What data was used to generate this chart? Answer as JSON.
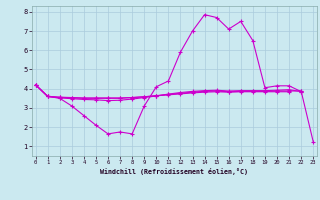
{
  "xlabel": "Windchill (Refroidissement éolien,°C)",
  "background_color": "#cbe9f0",
  "grid_color": "#aaccdd",
  "line_color": "#cc00cc",
  "x_hours": [
    0,
    1,
    2,
    3,
    4,
    5,
    6,
    7,
    8,
    9,
    10,
    11,
    12,
    13,
    14,
    15,
    16,
    17,
    18,
    19,
    20,
    21,
    22,
    23
  ],
  "line1_y": [
    4.2,
    3.6,
    3.5,
    3.1,
    2.6,
    2.1,
    1.65,
    1.75,
    1.65,
    3.1,
    4.1,
    4.4,
    5.9,
    7.0,
    7.85,
    7.7,
    7.1,
    7.5,
    6.5,
    4.05,
    4.15,
    4.15,
    3.85,
    null
  ],
  "line2_y": [
    4.2,
    3.6,
    3.52,
    3.48,
    3.44,
    3.42,
    3.38,
    3.4,
    3.46,
    3.54,
    3.62,
    3.72,
    3.8,
    3.86,
    3.9,
    3.92,
    3.88,
    3.9,
    3.9,
    3.9,
    3.92,
    3.95,
    3.85,
    null
  ],
  "line3_y": [
    4.2,
    3.6,
    3.55,
    3.52,
    3.5,
    3.5,
    3.5,
    3.5,
    3.54,
    3.58,
    3.64,
    3.7,
    3.76,
    3.82,
    3.86,
    3.88,
    3.84,
    3.86,
    3.86,
    3.86,
    3.88,
    3.88,
    3.88,
    null
  ],
  "line4_y": [
    4.2,
    3.6,
    3.56,
    3.54,
    3.52,
    3.52,
    3.52,
    3.52,
    3.54,
    3.58,
    3.63,
    3.68,
    3.73,
    3.78,
    3.82,
    3.84,
    3.82,
    3.84,
    3.84,
    3.84,
    3.84,
    3.84,
    null,
    null
  ],
  "line5_y": [
    null,
    null,
    null,
    null,
    null,
    null,
    null,
    null,
    null,
    null,
    null,
    null,
    null,
    null,
    null,
    null,
    null,
    null,
    null,
    null,
    null,
    null,
    3.88,
    1.25
  ],
  "ylim": [
    0.5,
    8.3
  ],
  "xlim": [
    -0.3,
    23.3
  ],
  "yticks": [
    1,
    2,
    3,
    4,
    5,
    6,
    7,
    8
  ],
  "xticks": [
    0,
    1,
    2,
    3,
    4,
    5,
    6,
    7,
    8,
    9,
    10,
    11,
    12,
    13,
    14,
    15,
    16,
    17,
    18,
    19,
    20,
    21,
    22,
    23
  ]
}
